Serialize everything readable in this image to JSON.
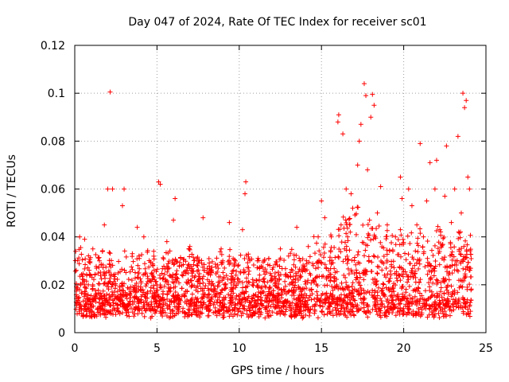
{
  "chart_data": {
    "type": "scatter",
    "title": "Day 047 of 2024, Rate Of TEC Index for receiver sc01",
    "xlabel": "GPS time / hours",
    "ylabel": "ROTI / TECUs",
    "xlim": [
      0,
      25
    ],
    "ylim": [
      0,
      0.12
    ],
    "x_ticks": [
      0,
      5,
      10,
      15,
      20,
      25
    ],
    "x_tick_labels": [
      "0",
      "5",
      "10",
      "15",
      "20",
      "25"
    ],
    "y_ticks": [
      0,
      0.02,
      0.04,
      0.06,
      0.08,
      0.1,
      0.12
    ],
    "y_tick_labels": [
      "0",
      "0.02",
      "0.04",
      "0.06",
      "0.08",
      "0.1",
      "0.12"
    ],
    "grid": true,
    "marker": "+",
    "color": "#ff0000",
    "series": [
      {
        "name": "ROTI",
        "points": [
          [
            2.15,
            0.1005
          ],
          [
            17.6,
            0.104
          ],
          [
            18.1,
            0.0995
          ],
          [
            23.6,
            0.1
          ],
          [
            23.8,
            0.097
          ],
          [
            17.7,
            0.099
          ],
          [
            18.2,
            0.095
          ],
          [
            16.05,
            0.091
          ],
          [
            16.0,
            0.088
          ],
          [
            17.4,
            0.087
          ],
          [
            21.0,
            0.079
          ],
          [
            22.6,
            0.078
          ],
          [
            23.3,
            0.082
          ],
          [
            23.7,
            0.094
          ],
          [
            16.3,
            0.083
          ],
          [
            17.3,
            0.08
          ],
          [
            18.0,
            0.09
          ],
          [
            21.6,
            0.071
          ],
          [
            22.0,
            0.072
          ],
          [
            19.8,
            0.065
          ],
          [
            2.0,
            0.06
          ],
          [
            2.3,
            0.06
          ],
          [
            3.0,
            0.06
          ],
          [
            5.1,
            0.063
          ],
          [
            5.2,
            0.062
          ],
          [
            6.1,
            0.056
          ],
          [
            10.4,
            0.063
          ],
          [
            10.35,
            0.058
          ],
          [
            7.8,
            0.048
          ],
          [
            9.4,
            0.046
          ],
          [
            13.5,
            0.044
          ],
          [
            15.0,
            0.055
          ],
          [
            15.2,
            0.048
          ],
          [
            16.5,
            0.06
          ],
          [
            16.8,
            0.058
          ],
          [
            18.6,
            0.061
          ],
          [
            19.9,
            0.056
          ],
          [
            20.3,
            0.06
          ],
          [
            20.5,
            0.053
          ],
          [
            21.4,
            0.055
          ],
          [
            21.9,
            0.06
          ],
          [
            22.5,
            0.057
          ],
          [
            23.1,
            0.06
          ],
          [
            23.9,
            0.065
          ],
          [
            1.8,
            0.045
          ],
          [
            2.9,
            0.053
          ],
          [
            3.8,
            0.044
          ],
          [
            4.2,
            0.04
          ],
          [
            4.8,
            0.034
          ],
          [
            6.0,
            0.047
          ],
          [
            7.0,
            0.036
          ],
          [
            8.9,
            0.035
          ],
          [
            10.2,
            0.043
          ],
          [
            11.1,
            0.03
          ],
          [
            11.8,
            0.031
          ],
          [
            12.5,
            0.035
          ],
          [
            13.0,
            0.032
          ],
          [
            14.2,
            0.036
          ],
          [
            14.8,
            0.04
          ],
          [
            0.3,
            0.04
          ],
          [
            0.6,
            0.039
          ],
          [
            1.1,
            0.035
          ],
          [
            1.5,
            0.03
          ],
          [
            3.5,
            0.033
          ],
          [
            5.6,
            0.038
          ],
          [
            6.5,
            0.028
          ],
          [
            7.5,
            0.022
          ],
          [
            8.3,
            0.026
          ],
          [
            9.0,
            0.03
          ],
          [
            9.8,
            0.024
          ],
          [
            10.8,
            0.02
          ],
          [
            11.5,
            0.017
          ],
          [
            12.2,
            0.021
          ],
          [
            13.7,
            0.03
          ],
          [
            14.5,
            0.028
          ],
          [
            15.6,
            0.04
          ],
          [
            16.9,
            0.052
          ],
          [
            17.2,
            0.07
          ],
          [
            17.8,
            0.068
          ],
          [
            18.4,
            0.05
          ],
          [
            19.0,
            0.045
          ],
          [
            19.5,
            0.04
          ],
          [
            20.8,
            0.045
          ],
          [
            21.2,
            0.04
          ],
          [
            22.2,
            0.043
          ],
          [
            22.9,
            0.046
          ],
          [
            23.5,
            0.05
          ],
          [
            24.0,
            0.06
          ]
        ]
      }
    ],
    "band_note": "dense background cloud of points between 0.005 and 0.03 across 0-24 hours"
  }
}
